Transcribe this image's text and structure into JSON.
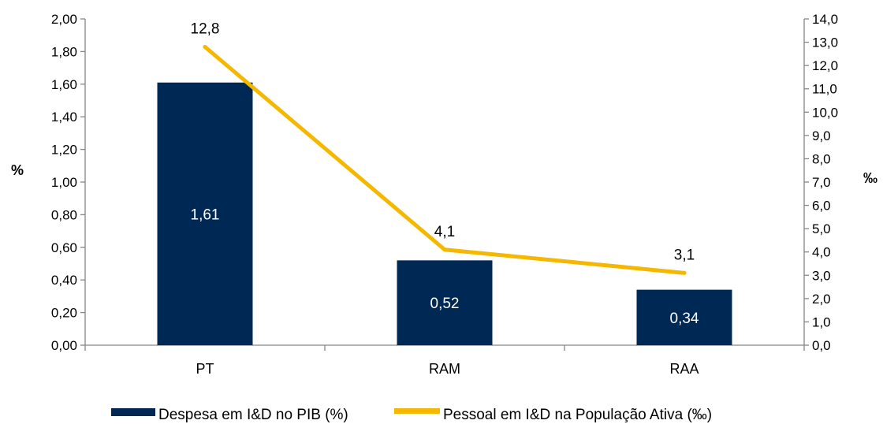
{
  "chart_data": {
    "type": "bar",
    "categories": [
      "PT",
      "RAM",
      "RAA"
    ],
    "series": [
      {
        "name": "Despesa em I&D no PIB (%)",
        "type": "bar",
        "axis": "left",
        "values": [
          1.61,
          0.52,
          0.34
        ],
        "labels": [
          "1,61",
          "0,52",
          "0,34"
        ],
        "color": "#002855"
      },
      {
        "name": "Pessoal em I&D na População Ativa (‰)",
        "type": "line",
        "axis": "right",
        "values": [
          12.8,
          4.1,
          3.1
        ],
        "labels": [
          "12,8",
          "4,1",
          "3,1"
        ],
        "color": "#f5b800"
      }
    ],
    "y_left": {
      "label": "%",
      "lim": [
        0,
        2
      ],
      "ticks": [
        "0,00",
        "0,20",
        "0,40",
        "0,60",
        "0,80",
        "1,00",
        "1,20",
        "1,40",
        "1,60",
        "1,80",
        "2,00"
      ]
    },
    "y_right": {
      "label": "‰",
      "lim": [
        0,
        14
      ],
      "ticks": [
        "0,0",
        "1,0",
        "2,0",
        "3,0",
        "4,0",
        "5,0",
        "6,0",
        "7,0",
        "8,0",
        "9,0",
        "10,0",
        "11,0",
        "12,0",
        "13,0",
        "14,0"
      ]
    },
    "grid": false,
    "legend": "bottom"
  }
}
